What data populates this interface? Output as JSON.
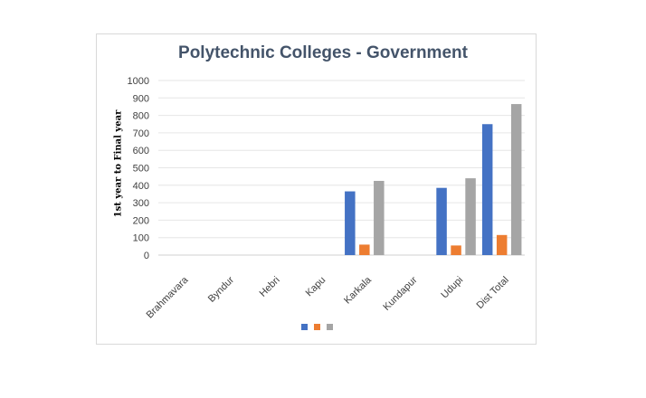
{
  "chart_data": {
    "type": "bar",
    "title": "Polytechnic  Colleges - Government",
    "xlabel": "",
    "ylabel": "1st year to Final year",
    "ylim": [
      0,
      1000
    ],
    "yticks": [
      0,
      100,
      200,
      300,
      400,
      500,
      600,
      700,
      800,
      900,
      1000
    ],
    "grid": true,
    "legend": "bottom",
    "categories": [
      "Brahmavara",
      "Byndur",
      "Hebri",
      "Kapu",
      "Karkala",
      "Kundapur",
      "Udupi",
      "Dist Total"
    ],
    "series": [
      {
        "color": "#4472c4",
        "values": [
          0,
          0,
          0,
          0,
          365,
          0,
          385,
          750
        ]
      },
      {
        "color": "#ed7d31",
        "values": [
          0,
          0,
          0,
          0,
          60,
          0,
          55,
          115
        ]
      },
      {
        "color": "#a5a5a5",
        "values": [
          0,
          0,
          0,
          0,
          425,
          0,
          440,
          865
        ]
      }
    ]
  }
}
